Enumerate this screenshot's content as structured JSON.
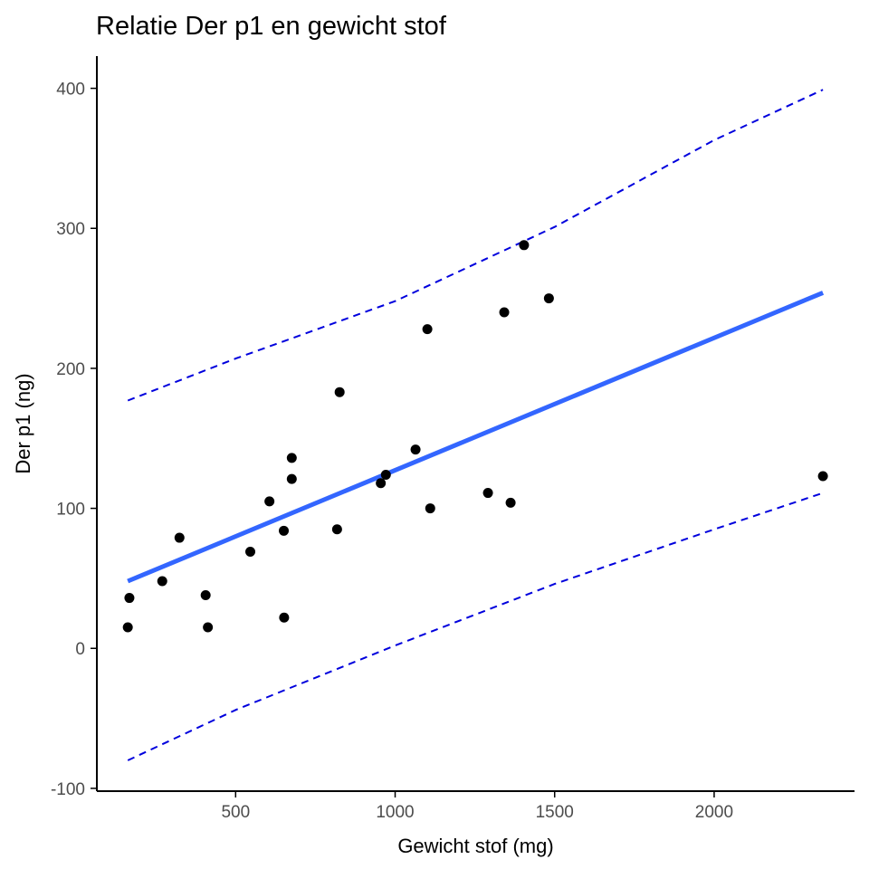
{
  "chart_data": {
    "type": "scatter",
    "title": "Relatie Der p1 en gewicht stof",
    "xlabel": "Gewicht stof (mg)",
    "ylabel": "Der p1 (ng)",
    "xlim": [
      65,
      2440
    ],
    "ylim": [
      -102,
      423
    ],
    "x_ticks": [
      500,
      1000,
      1500,
      2000
    ],
    "y_ticks": [
      -100,
      0,
      100,
      200,
      300,
      400
    ],
    "x_tick_labels": [
      "500",
      "1000",
      "1500",
      "2000"
    ],
    "y_tick_labels": [
      "-100",
      "0",
      "100",
      "200",
      "300",
      "400"
    ],
    "grid": false,
    "legend": "none",
    "points": [
      {
        "x": 162,
        "y": 15
      },
      {
        "x": 167,
        "y": 36
      },
      {
        "x": 270,
        "y": 48
      },
      {
        "x": 324,
        "y": 79
      },
      {
        "x": 406,
        "y": 38
      },
      {
        "x": 413,
        "y": 15
      },
      {
        "x": 546,
        "y": 69
      },
      {
        "x": 606,
        "y": 105
      },
      {
        "x": 651,
        "y": 84
      },
      {
        "x": 652,
        "y": 22
      },
      {
        "x": 676,
        "y": 136
      },
      {
        "x": 676,
        "y": 121
      },
      {
        "x": 818,
        "y": 85
      },
      {
        "x": 826,
        "y": 183
      },
      {
        "x": 955,
        "y": 118
      },
      {
        "x": 971,
        "y": 124
      },
      {
        "x": 1064,
        "y": 142
      },
      {
        "x": 1101,
        "y": 228
      },
      {
        "x": 1110,
        "y": 100
      },
      {
        "x": 1291,
        "y": 111
      },
      {
        "x": 1342,
        "y": 240
      },
      {
        "x": 1362,
        "y": 104
      },
      {
        "x": 1404,
        "y": 288
      },
      {
        "x": 1482,
        "y": 250
      },
      {
        "x": 2341,
        "y": 123
      }
    ],
    "fit_line": {
      "x": [
        162,
        2341
      ],
      "y": [
        48,
        254
      ]
    },
    "prediction_band": {
      "x": [
        162,
        500,
        1000,
        1500,
        2000,
        2341
      ],
      "upper": [
        177,
        207,
        248,
        301,
        363,
        399
      ],
      "lower": [
        -80,
        -44,
        2,
        46,
        85,
        111
      ]
    },
    "colors": {
      "points": "#000000",
      "fit_line": "#3366ff",
      "band": "#0000dd",
      "axis": "#000000",
      "tick_label": "#4d4d4d"
    }
  }
}
